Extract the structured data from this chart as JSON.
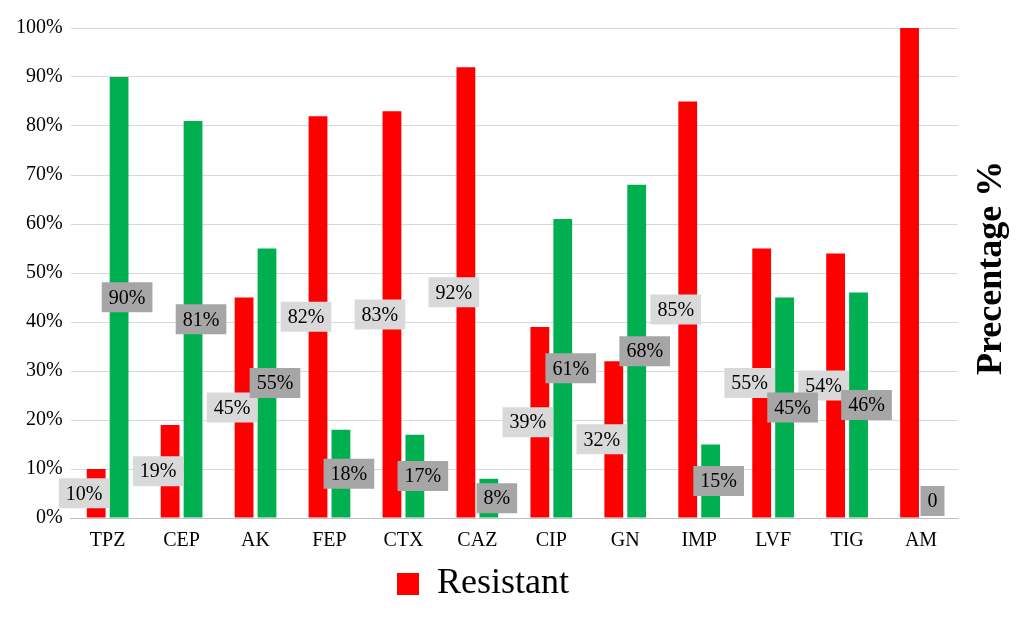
{
  "chart_data": {
    "type": "bar",
    "ylabel": "Precentage %",
    "categories": [
      "TPZ",
      "CEP",
      "AK",
      "FEP",
      "CTX",
      "CAZ",
      "CIP",
      "GN",
      "IMP",
      "LVF",
      "TIG",
      "AM"
    ],
    "series": [
      {
        "name": "Resistant",
        "color": "#ff0000",
        "values": [
          10,
          19,
          45,
          82,
          83,
          92,
          39,
          32,
          85,
          55,
          54,
          100
        ],
        "value_labels": [
          "10%",
          "19%",
          "45%",
          "82%",
          "83%",
          "92%",
          "39%",
          "32%",
          "85%",
          "55%",
          "54%",
          null
        ]
      },
      {
        "color": "#00b050",
        "values": [
          90,
          81,
          55,
          18,
          17,
          8,
          61,
          68,
          15,
          45,
          46,
          0
        ],
        "value_labels": [
          "90%",
          "81%",
          "55%",
          "18%",
          "17%",
          "8%",
          "61%",
          "68%",
          "15%",
          "45%",
          "46%",
          "0"
        ]
      }
    ],
    "ylim": [
      0,
      100
    ],
    "yticks": [
      {
        "value": 0,
        "label": "0%"
      },
      {
        "value": 10,
        "label": "10%"
      },
      {
        "value": 20,
        "label": "20%"
      },
      {
        "value": 30,
        "label": "30%"
      },
      {
        "value": 40,
        "label": "40%"
      },
      {
        "value": 50,
        "label": "50%"
      },
      {
        "value": 60,
        "label": "60%"
      },
      {
        "value": 70,
        "label": "70%"
      },
      {
        "value": 80,
        "label": "80%"
      },
      {
        "value": 90,
        "label": "90%"
      },
      {
        "value": 100,
        "label": "100%"
      }
    ],
    "grid": "y",
    "legend": "bottom"
  }
}
